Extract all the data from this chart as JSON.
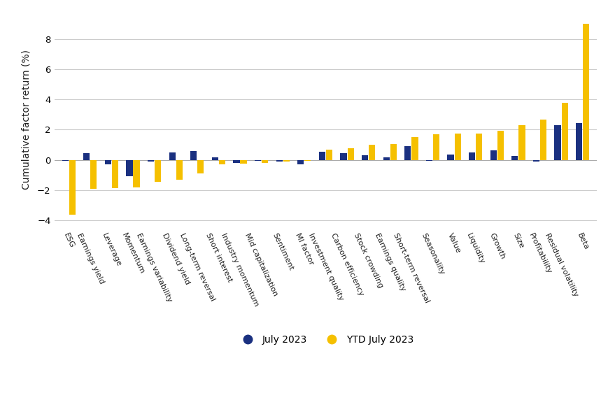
{
  "categories": [
    "ESG",
    "Earnings yield",
    "Leverage",
    "Momentum",
    "Earnings variability",
    "Dividend yield",
    "Long-term reversal",
    "Short interest",
    "Industry momentum",
    "Mid capitalization",
    "Sentiment",
    "MI factor",
    "Investment quality",
    "Carbon efficiency",
    "Stock crowding",
    "Earnings quality",
    "Short-term reversal",
    "Seasonality",
    "Value",
    "Liquidity",
    "Growth",
    "Size",
    "Profitability",
    "Residual volatility",
    "Beta"
  ],
  "july_2023": [
    -0.05,
    0.45,
    -0.3,
    -1.1,
    -0.1,
    0.5,
    0.6,
    0.15,
    -0.2,
    -0.05,
    -0.1,
    -0.3,
    0.55,
    0.45,
    0.3,
    0.15,
    0.9,
    -0.05,
    0.35,
    0.5,
    0.65,
    0.25,
    -0.1,
    2.3,
    2.45
  ],
  "ytd_july_2023": [
    -3.6,
    -1.9,
    -1.85,
    -1.8,
    -1.45,
    -1.3,
    -0.9,
    -0.3,
    -0.25,
    -0.2,
    -0.1,
    -0.05,
    0.7,
    0.75,
    1.0,
    1.05,
    1.5,
    1.7,
    1.75,
    1.75,
    1.95,
    2.3,
    2.65,
    3.8,
    9.0
  ],
  "bar_color_july": "#1a3080",
  "bar_color_ytd": "#f5c000",
  "ylabel": "Cumulative factor return (%)",
  "legend_july": "July 2023",
  "legend_ytd": "YTD July 2023",
  "ylim": [
    -4.5,
    9.8
  ],
  "yticks": [
    -4,
    -2,
    0,
    2,
    4,
    6,
    8
  ],
  "background_color": "#ffffff",
  "grid_color": "#cccccc"
}
